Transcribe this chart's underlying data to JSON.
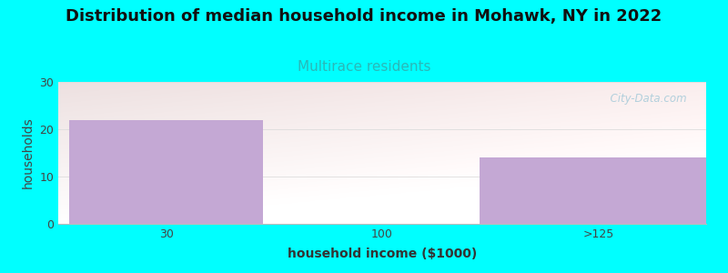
{
  "title": "Distribution of median household income in Mohawk, NY in 2022",
  "subtitle": "Multirace residents",
  "xlabel": "household income ($1000)",
  "ylabel": "households",
  "background_color": "#00FFFF",
  "bar_color": "#C4A8D4",
  "categories": [
    "30",
    "100",
    ">125"
  ],
  "bar_values": [
    22,
    0,
    14
  ],
  "ylim": [
    0,
    30
  ],
  "yticks": [
    0,
    10,
    20,
    30
  ],
  "title_fontsize": 13,
  "subtitle_fontsize": 11,
  "subtitle_color": "#2ab8b8",
  "axis_label_fontsize": 10,
  "tick_fontsize": 9,
  "watermark_text": "  City-Data.com",
  "watermark_color": "#a0c8d8",
  "watermark_alpha": 0.8,
  "grid_color": "#dddddd",
  "tick_color": "#444444",
  "ylabel_color": "#444444",
  "xlabel_color": "#333333"
}
